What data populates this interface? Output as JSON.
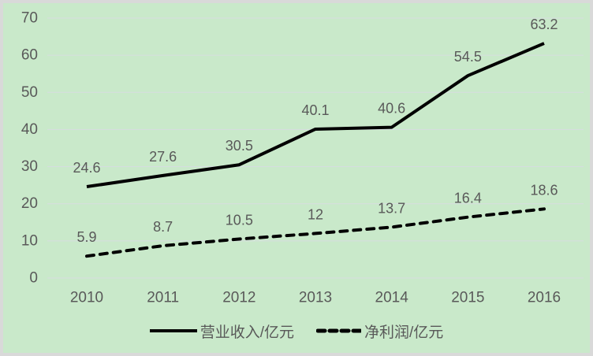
{
  "page": {
    "background_color": "#c9e9ca",
    "border_color": "#d9d9d9",
    "text_color": "#595959",
    "gridline_color": "#d8dbe2"
  },
  "chart_data": {
    "type": "line",
    "title": "",
    "xlabel": "",
    "ylabel": "",
    "categories": [
      "2010",
      "2011",
      "2012",
      "2013",
      "2014",
      "2015",
      "2016"
    ],
    "series": [
      {
        "name": "营业收入/亿元",
        "values": [
          24.6,
          27.6,
          30.5,
          40.1,
          40.6,
          54.5,
          63.2
        ],
        "line_style": "solid",
        "color": "#000000"
      },
      {
        "name": "净利润/亿元",
        "values": [
          5.9,
          8.7,
          10.5,
          12,
          13.7,
          16.4,
          18.6
        ],
        "line_style": "dashed",
        "color": "#000000"
      }
    ],
    "ylim": [
      0,
      70
    ],
    "ytick_step": 10,
    "yticks": [
      "0",
      "10",
      "20",
      "30",
      "40",
      "50",
      "60",
      "70"
    ],
    "grid": true,
    "data_labels": true,
    "legend_position": "bottom"
  }
}
